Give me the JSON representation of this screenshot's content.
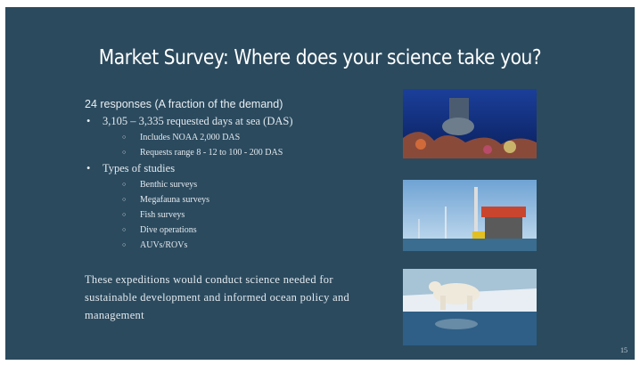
{
  "slide": {
    "title": "Market Survey: Where does your science take you?",
    "intro": "24 responses (A fraction of the demand)",
    "bullets": [
      {
        "text": "3,105 – 3,335 requested days at sea (DAS)",
        "subitems": [
          "Includes NOAA 2,000 DAS",
          "Requests range 8 - 12 to 100 - 200 DAS"
        ]
      },
      {
        "text": "Types of studies",
        "subitems": [
          "Benthic surveys",
          "Megafauna surveys",
          "Fish surveys",
          "Dive operations",
          "AUVs/ROVs"
        ]
      }
    ],
    "paragraph": "These expeditions would conduct science needed for sustainable development and informed ocean policy and management",
    "page_number": "15"
  }
}
